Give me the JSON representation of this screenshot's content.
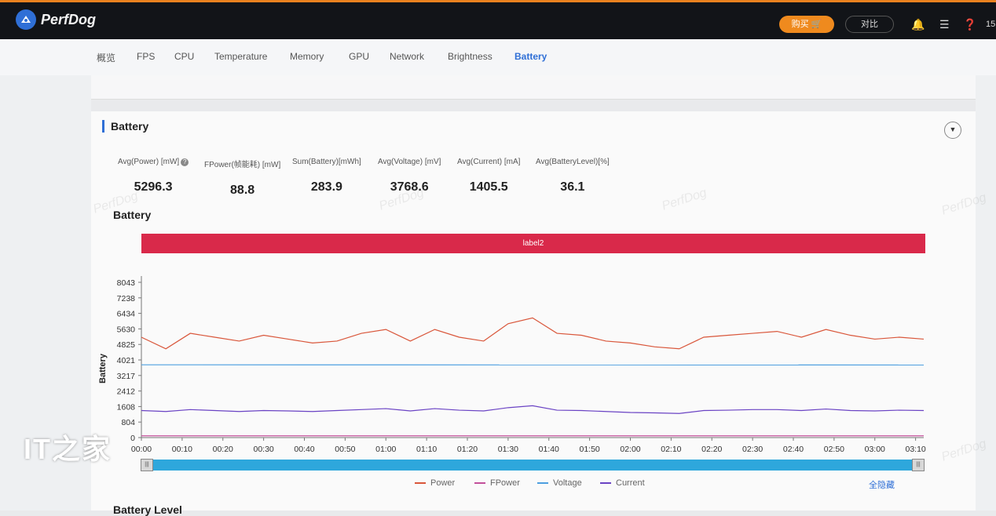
{
  "topbar": {
    "app_name": "PerfDog",
    "buy_label": "购买",
    "compare_label": "对比",
    "trailing_text": "15"
  },
  "tabs": [
    {
      "label": "概览"
    },
    {
      "label": "FPS"
    },
    {
      "label": "CPU"
    },
    {
      "label": "Temperature"
    },
    {
      "label": "Memory"
    },
    {
      "label": "GPU"
    },
    {
      "label": "Network"
    },
    {
      "label": "Brightness"
    },
    {
      "label": "Battery",
      "active": true
    }
  ],
  "section": {
    "title": "Battery"
  },
  "stats": [
    {
      "label": "Avg(Power) [mW]",
      "value": "5296.3"
    },
    {
      "label": "FPower(帧能耗) [mW]",
      "value": "88.8"
    },
    {
      "label": "Sum(Battery)[mWh]",
      "value": "283.9"
    },
    {
      "label": "Avg(Voltage) [mV]",
      "value": "3768.6"
    },
    {
      "label": "Avg(Current) [mA]",
      "value": "1405.5"
    },
    {
      "label": "Avg(BatteryLevel)[%]",
      "value": "36.1"
    }
  ],
  "chart_title": "Battery",
  "label_bar": "label2",
  "watermark": "PerfDog",
  "legend": [
    {
      "name": "Power",
      "color": "#d9563a"
    },
    {
      "name": "FPower",
      "color": "#c3509a"
    },
    {
      "name": "Voltage",
      "color": "#4d9fe0"
    },
    {
      "name": "Current",
      "color": "#6a43c4"
    }
  ],
  "hide_all_label": "全隐藏",
  "next_section_title": "Battery Level",
  "corner_logo": "IT之家",
  "chart_data": {
    "type": "line",
    "ylabel": "Battery",
    "y_ticks": [
      "0",
      "804",
      "1608",
      "2412",
      "3217",
      "4021",
      "4825",
      "5630",
      "6434",
      "7238",
      "8043"
    ],
    "ylim": [
      0,
      8043
    ],
    "x_ticks": [
      "00:00",
      "00:10",
      "00:20",
      "00:30",
      "00:40",
      "00:50",
      "01:00",
      "01:10",
      "01:20",
      "01:30",
      "01:40",
      "01:50",
      "02:00",
      "02:10",
      "02:20",
      "02:30",
      "02:40",
      "02:50",
      "03:00",
      "03:10"
    ],
    "xlim_seconds": [
      0,
      192
    ],
    "series": [
      {
        "name": "Power",
        "color": "#d9563a",
        "x": [
          0,
          6,
          12,
          18,
          24,
          30,
          36,
          42,
          48,
          54,
          60,
          66,
          72,
          78,
          84,
          90,
          96,
          102,
          108,
          114,
          120,
          126,
          132,
          138,
          144,
          150,
          156,
          162,
          168,
          174,
          180,
          186,
          192
        ],
        "y": [
          5200,
          4600,
          5400,
          5200,
          5000,
          5300,
          5100,
          4900,
          5000,
          5400,
          5600,
          5000,
          5600,
          5200,
          5000,
          5900,
          6200,
          5400,
          5300,
          5000,
          4900,
          4700,
          4600,
          5200,
          5300,
          5400,
          5500,
          5200,
          5600,
          5300,
          5100,
          5200,
          5100
        ]
      },
      {
        "name": "FPower",
        "color": "#c3509a",
        "x": [
          0,
          192
        ],
        "y": [
          90,
          90
        ]
      },
      {
        "name": "Voltage",
        "color": "#4d9fe0",
        "x": [
          0,
          192
        ],
        "y": [
          3770,
          3760
        ]
      },
      {
        "name": "Current",
        "color": "#6a43c4",
        "x": [
          0,
          6,
          12,
          18,
          24,
          30,
          36,
          42,
          48,
          54,
          60,
          66,
          72,
          78,
          84,
          90,
          96,
          102,
          108,
          114,
          120,
          126,
          132,
          138,
          144,
          150,
          156,
          162,
          168,
          174,
          180,
          186,
          192
        ],
        "y": [
          1400,
          1350,
          1450,
          1400,
          1350,
          1400,
          1380,
          1350,
          1400,
          1450,
          1500,
          1380,
          1500,
          1420,
          1380,
          1550,
          1650,
          1420,
          1400,
          1350,
          1300,
          1280,
          1250,
          1400,
          1420,
          1450,
          1450,
          1400,
          1480,
          1400,
          1380,
          1420,
          1400
        ]
      }
    ]
  }
}
